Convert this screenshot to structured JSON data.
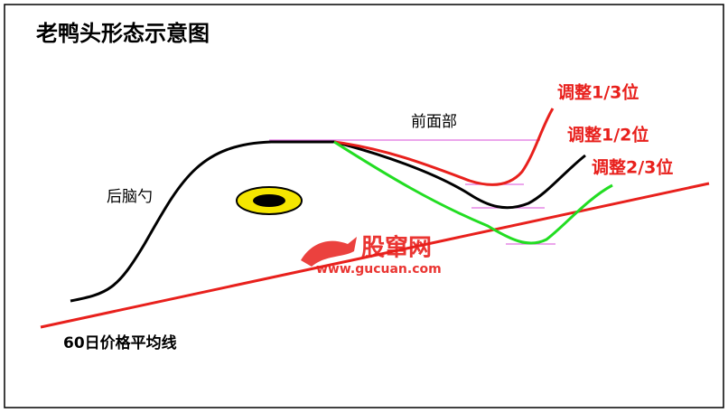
{
  "title": "老鸭头形态示意图",
  "labels": {
    "front": "前面部",
    "back": "后脑勺",
    "ma60": "60日价格平均线",
    "adjust": [
      "调整1/3位",
      "调整1/2位",
      "调整2/3位"
    ]
  },
  "watermark": {
    "name": "股窜网",
    "url": "www.gucuan.com"
  }
}
